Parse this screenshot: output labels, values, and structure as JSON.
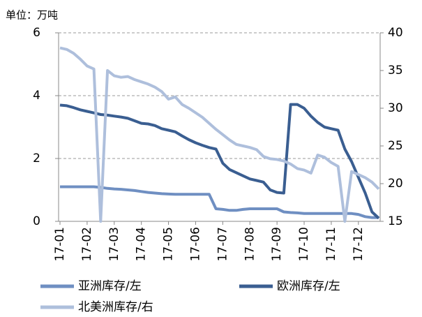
{
  "chart_data": {
    "type": "line",
    "unit_label": "单位：万吨",
    "categories": [
      "17-01",
      null,
      null,
      null,
      "17-02",
      null,
      null,
      null,
      "17-03",
      null,
      null,
      null,
      "17-04",
      null,
      null,
      null,
      "17-05",
      null,
      null,
      null,
      "17-06",
      null,
      null,
      null,
      "17-07",
      null,
      null,
      null,
      "17-08",
      null,
      null,
      null,
      "17-09",
      null,
      null,
      null,
      "17-10",
      null,
      null,
      null,
      "17-11",
      null,
      null,
      null,
      "17-12",
      null,
      null,
      null
    ],
    "ylim": [
      0,
      6
    ],
    "yticks": [
      0,
      2,
      4,
      6
    ],
    "y2lim": [
      15,
      40
    ],
    "y2ticks": [
      15,
      20,
      25,
      30,
      35,
      40
    ],
    "grid": true,
    "legend": "bottom",
    "series": [
      {
        "name": "亚洲库存/左",
        "color": "#6f8fc2",
        "axis": "y",
        "values": [
          1.1,
          1.1,
          1.1,
          1.1,
          1.1,
          1.1,
          1.08,
          1.05,
          1.03,
          1.02,
          1.0,
          0.98,
          0.95,
          0.92,
          0.9,
          0.88,
          0.87,
          0.86,
          0.86,
          0.86,
          0.86,
          0.86,
          0.86,
          0.4,
          0.38,
          0.35,
          0.35,
          0.38,
          0.4,
          0.4,
          0.4,
          0.4,
          0.4,
          0.3,
          0.28,
          0.27,
          0.25,
          0.25,
          0.25,
          0.25,
          0.25,
          0.25,
          0.25,
          0.25,
          0.22,
          0.15,
          0.12,
          0.12
        ]
      },
      {
        "name": "欧洲库存/左",
        "color": "#3a5e91",
        "axis": "y",
        "values": [
          3.7,
          3.68,
          3.62,
          3.55,
          3.5,
          3.45,
          3.4,
          3.38,
          3.35,
          3.32,
          3.28,
          3.2,
          3.12,
          3.1,
          3.05,
          2.95,
          2.9,
          2.85,
          2.72,
          2.6,
          2.5,
          2.42,
          2.35,
          2.3,
          1.85,
          1.65,
          1.55,
          1.45,
          1.35,
          1.3,
          1.25,
          1.0,
          0.92,
          0.9,
          3.72,
          3.72,
          3.6,
          3.35,
          3.15,
          3.0,
          2.95,
          2.9,
          2.3,
          1.9,
          1.4,
          0.9,
          0.3,
          0.1
        ]
      },
      {
        "name": "北美洲库存/右",
        "color": "#aebfdc",
        "axis": "y2",
        "values": [
          38,
          37.8,
          37.3,
          36.5,
          35.6,
          35.2,
          15,
          35,
          34.3,
          34.1,
          34.2,
          33.8,
          33.5,
          33.2,
          32.8,
          32.2,
          31.2,
          31.5,
          30.5,
          30,
          29.4,
          28.8,
          28,
          27.2,
          26.5,
          25.8,
          25.2,
          25,
          24.8,
          24.5,
          23.6,
          23.3,
          23.2,
          23,
          22.6,
          22,
          21.8,
          21.4,
          23.8,
          23.5,
          22.8,
          22.3,
          15,
          21.6,
          21.2,
          20.8,
          20.2,
          19.3
        ]
      }
    ]
  }
}
